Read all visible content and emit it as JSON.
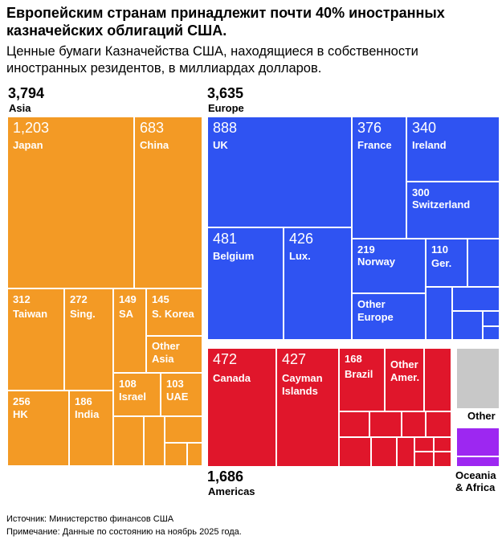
{
  "title": "Европейским странам принадлежит почти 40% иностранных казначейских облигаций США.",
  "subtitle": "Ценные бумаги Казначейства США, находящиеся в собственности иностранных резидентов, в миллиардах долларов.",
  "colors": {
    "asia": "#F39A25",
    "europe": "#2F53F2",
    "americas": "#E0162B",
    "other": "#C8C8C8",
    "oceania": "#9D27F1"
  },
  "chart_data": {
    "type": "treemap",
    "title": "Европейским странам принадлежит почти 40% иностранных казначейских облигаций США.",
    "unit": "billion USD",
    "groups": [
      {
        "name": "Asia",
        "total": "3,794",
        "items": [
          {
            "label": "Japan",
            "value": "1,203"
          },
          {
            "label": "China",
            "value": "683"
          },
          {
            "label": "Taiwan",
            "value": "312"
          },
          {
            "label": "Sing.",
            "value": "272"
          },
          {
            "label": "SA",
            "value": "149"
          },
          {
            "label": "S. Korea",
            "value": "145"
          },
          {
            "label": "Other Asia",
            "value": ""
          },
          {
            "label": "Israel",
            "value": "108"
          },
          {
            "label": "UAE",
            "value": "103"
          },
          {
            "label": "HK",
            "value": "256"
          },
          {
            "label": "India",
            "value": "186"
          }
        ]
      },
      {
        "name": "Europe",
        "total": "3,635",
        "items": [
          {
            "label": "UK",
            "value": "888"
          },
          {
            "label": "France",
            "value": "376"
          },
          {
            "label": "Ireland",
            "value": "340"
          },
          {
            "label": "Switzerland",
            "value": "300"
          },
          {
            "label": "Belgium",
            "value": "481"
          },
          {
            "label": "Lux.",
            "value": "426"
          },
          {
            "label": "Norway",
            "value": "219"
          },
          {
            "label": "Ger.",
            "value": "110"
          },
          {
            "label": "Other Europe",
            "value": ""
          }
        ]
      },
      {
        "name": "Americas",
        "total": "1,686",
        "items": [
          {
            "label": "Canada",
            "value": "472"
          },
          {
            "label": "Cayman Islands",
            "value": "427"
          },
          {
            "label": "Brazil",
            "value": "168"
          },
          {
            "label": "Other Amer.",
            "value": ""
          }
        ]
      },
      {
        "name": "Other",
        "total": "",
        "items": []
      },
      {
        "name": "Oceania & Africa",
        "total": "",
        "items": []
      }
    ]
  },
  "groups_display": {
    "asia": {
      "total": "3,794",
      "name": "Asia"
    },
    "europe": {
      "total": "3,635",
      "name": "Europe"
    },
    "americas": {
      "total": "1,686",
      "name": "Americas"
    },
    "other": {
      "name": "Other"
    },
    "oceania": {
      "name_line1": "Oceania",
      "name_line2": "& Africa"
    }
  },
  "cells": {
    "japan": {
      "value": "1,203",
      "label": "Japan"
    },
    "china": {
      "value": "683",
      "label": "China"
    },
    "taiwan": {
      "value": "312",
      "label": "Taiwan"
    },
    "sing": {
      "value": "272",
      "label": "Sing."
    },
    "sa": {
      "value": "149",
      "label": "SA"
    },
    "skorea": {
      "value": "145",
      "label": "S. Korea"
    },
    "otherasia": {
      "label1": "Other",
      "label2": "Asia"
    },
    "israel": {
      "value": "108",
      "label": "Israel"
    },
    "uae": {
      "value": "103",
      "label": "UAE"
    },
    "hk": {
      "value": "256",
      "label": "HK"
    },
    "india": {
      "value": "186",
      "label": "India"
    },
    "uk": {
      "value": "888",
      "label": "UK"
    },
    "france": {
      "value": "376",
      "label": "France"
    },
    "ireland": {
      "value": "340",
      "label": "Ireland"
    },
    "switzerland": {
      "value": "300",
      "label": "Switzerland"
    },
    "belgium": {
      "value": "481",
      "label": "Belgium"
    },
    "lux": {
      "value": "426",
      "label": "Lux."
    },
    "norway": {
      "value": "219",
      "label": "Norway"
    },
    "ger": {
      "value": "110",
      "label": "Ger."
    },
    "othereurope": {
      "label1": "Other",
      "label2": "Europe"
    },
    "canada": {
      "value": "472",
      "label": "Canada"
    },
    "cayman": {
      "value": "427",
      "label1": "Cayman",
      "label2": "Islands"
    },
    "brazil": {
      "value": "168",
      "label": "Brazil"
    },
    "otheramer": {
      "label1": "Other",
      "label2": "Amer."
    }
  },
  "footer": {
    "source": "Источник: Министерство финансов США",
    "note": "Примечание: Данные по состоянию на ноябрь 2025 года."
  }
}
